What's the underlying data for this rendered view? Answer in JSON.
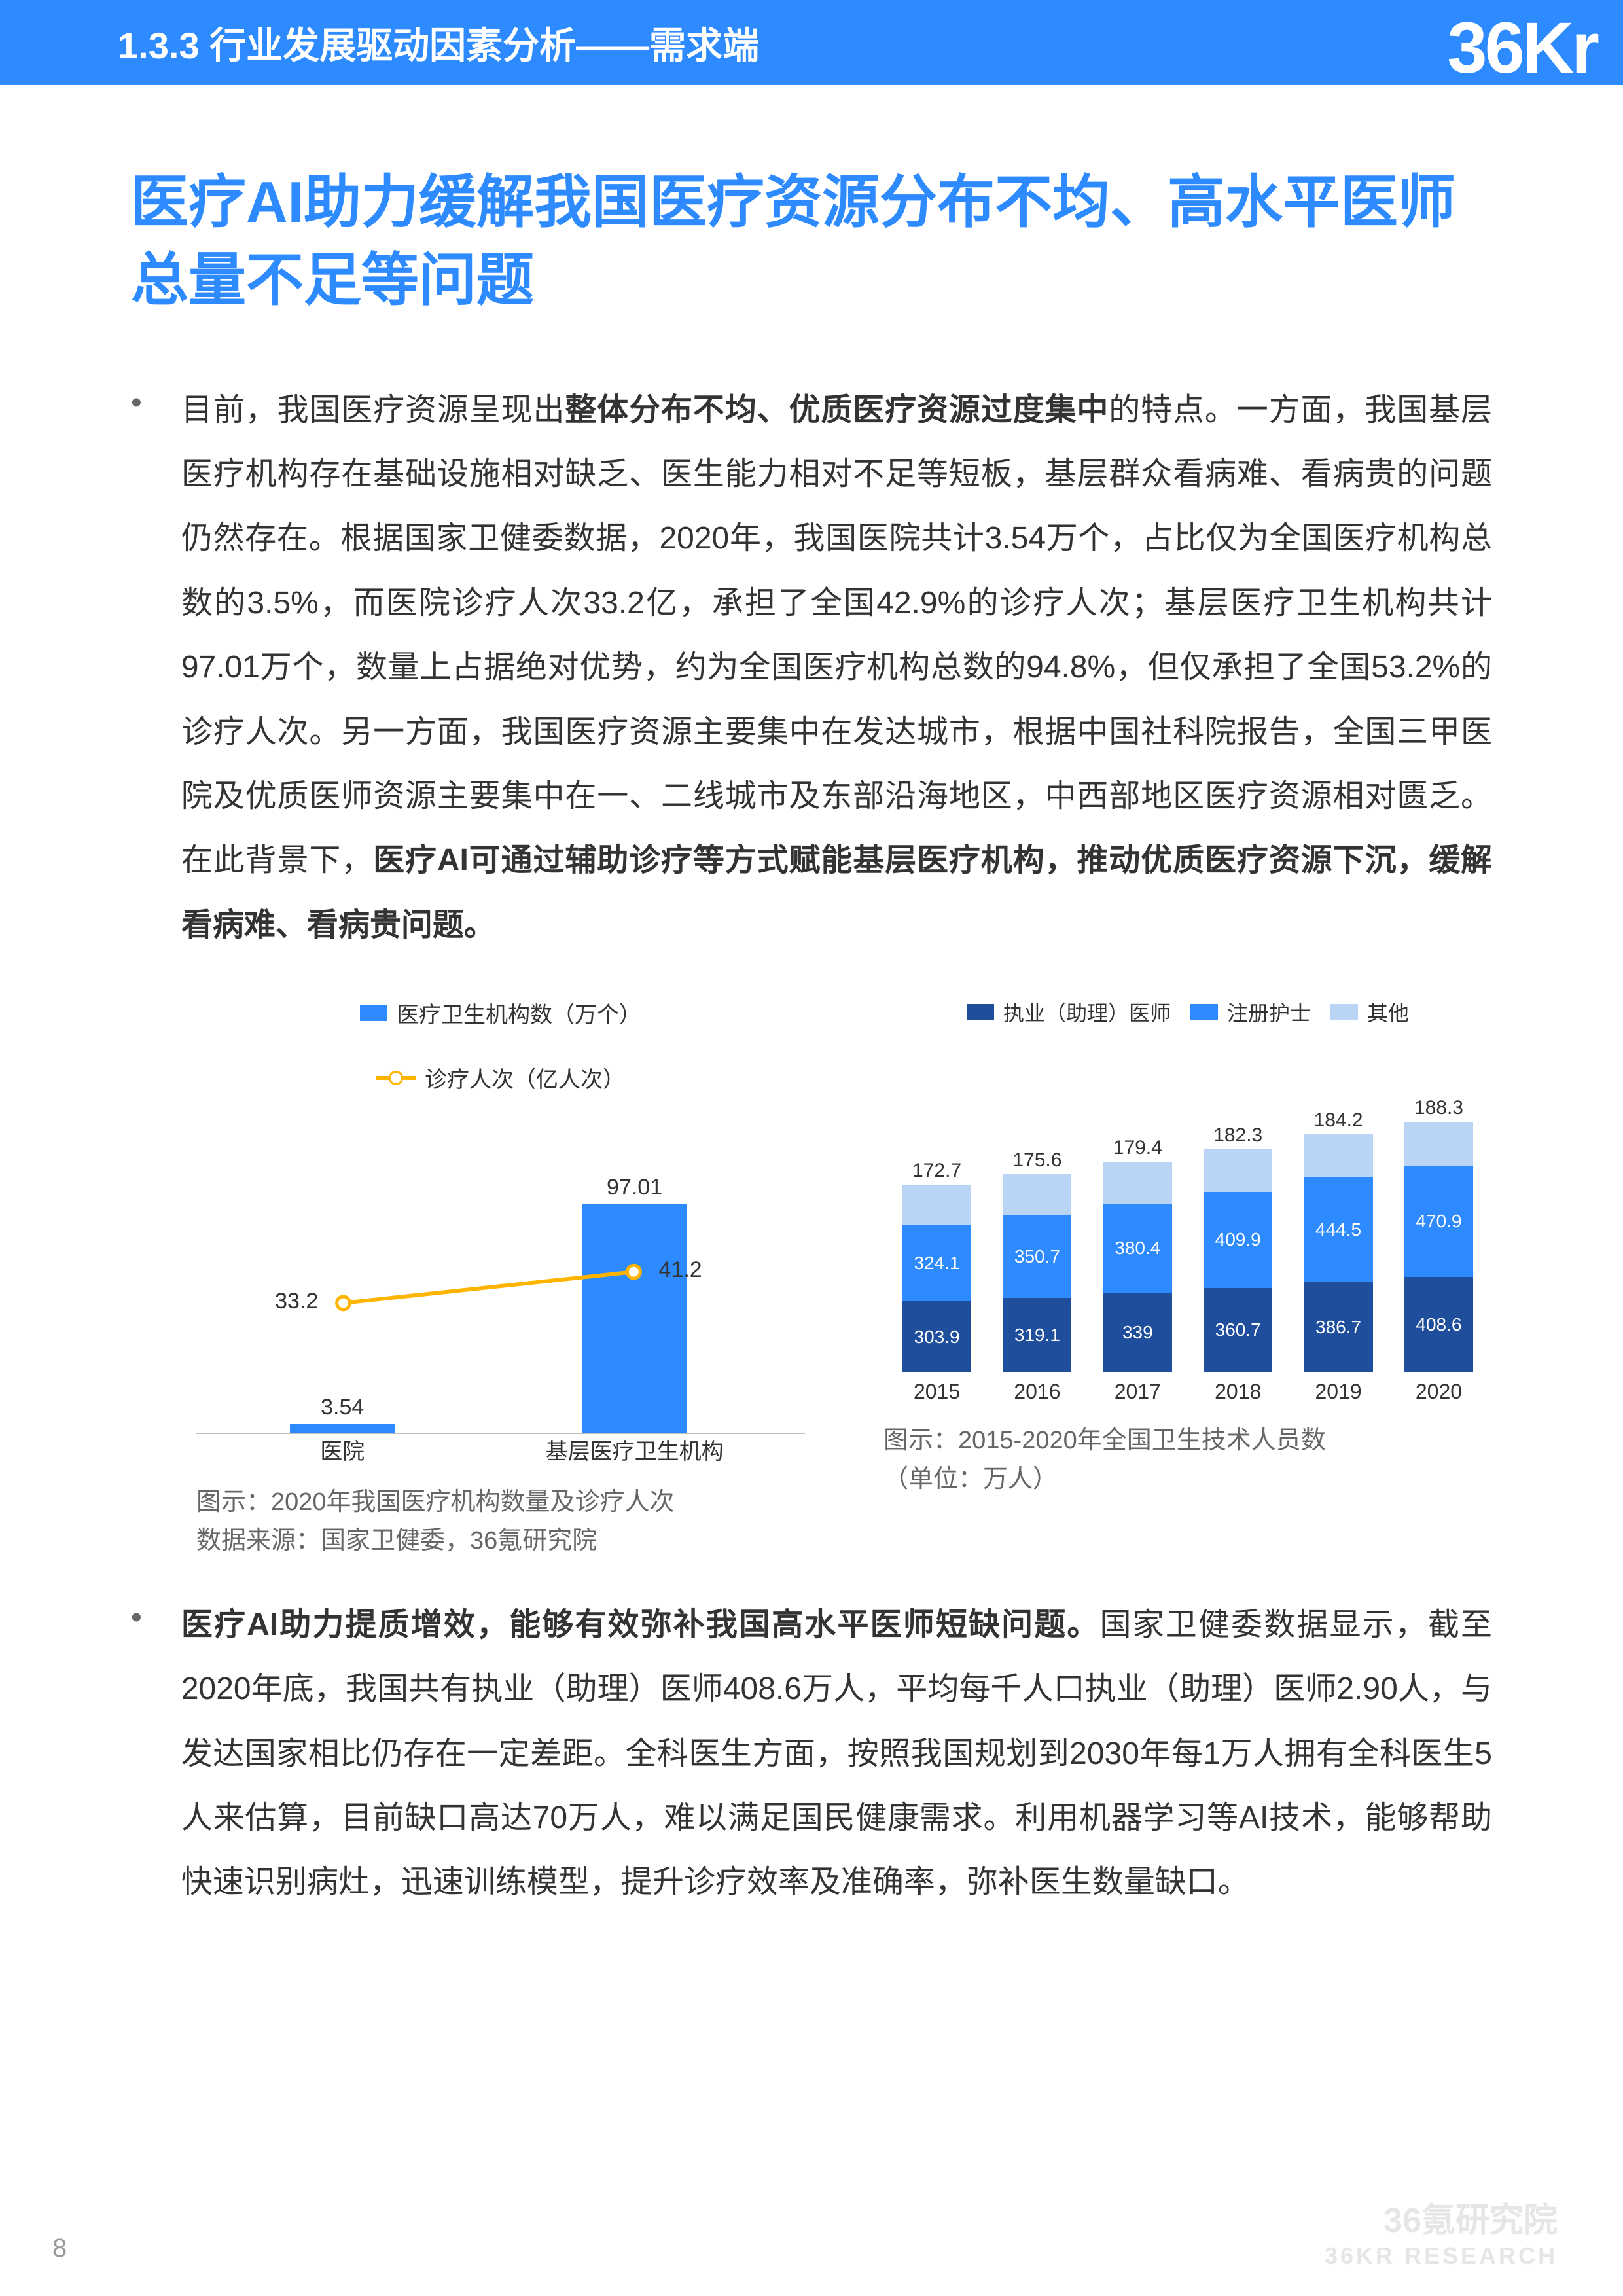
{
  "header": {
    "section": "1.3.3 行业发展驱动因素分析——需求端",
    "logo": "36Kr"
  },
  "title": "医疗AI助力缓解我国医疗资源分布不均、高水平医师总量不足等问题",
  "para1_segments": [
    {
      "t": "目前，我国医疗资源呈现出",
      "b": false
    },
    {
      "t": "整体分布不均、优质医疗资源过度集中",
      "b": true
    },
    {
      "t": "的特点。一方面，我国基层医疗机构存在基础设施相对缺乏、医生能力相对不足等短板，基层群众看病难、看病贵的问题仍然存在。根据国家卫健委数据，2020年，我国医院共计3.54万个，占比仅为全国医疗机构总数的3.5%，而医院诊疗人次33.2亿，承担了全国42.9%的诊疗人次；基层医疗卫生机构共计97.01万个，数量上占据绝对优势，约为全国医疗机构总数的94.8%，但仅承担了全国53.2%的诊疗人次。另一方面，我国医疗资源主要集中在发达城市，根据中国社科院报告，全国三甲医院及优质医师资源主要集中在一、二线城市及东部沿海地区，中西部地区医疗资源相对匮乏。在此背景下，",
      "b": false
    },
    {
      "t": "医疗AI可通过辅助诊疗等方式赋能基层医疗机构，推动优质医疗资源下沉，缓解看病难、看病贵问题。",
      "b": true
    }
  ],
  "para2_segments": [
    {
      "t": "医疗AI助力提质增效，能够有效弥补我国高水平医师短缺问题。",
      "b": true
    },
    {
      "t": "国家卫健委数据显示，截至2020年底，我国共有执业（助理）医师408.6万人，平均每千人口执业（助理）医师2.90人，与发达国家相比仍存在一定差距。全科医生方面，按照我国规划到2030年每1万人拥有全科医生5人来估算，目前缺口高达70万人，难以满足国民健康需求。利用机器学习等AI技术，能够帮助快速识别病灶，迅速训练模型，提升诊疗效率及准确率，弥补医生数量缺口。",
      "b": false
    }
  ],
  "chart1": {
    "type": "bar+line",
    "legend_bar": "医疗卫生机构数（万个）",
    "legend_line": "诊疗人次（亿人次）",
    "bar_color": "#2e8bff",
    "line_color": "#ffb400",
    "marker_border": "#ffb400",
    "marker_fill": "#ffffff",
    "axis_color": "#bfbfbf",
    "categories": [
      "医院",
      "基层医疗卫生机构"
    ],
    "bar_values": [
      3.54,
      97.01
    ],
    "bar_labels": [
      "3.54",
      "97.01"
    ],
    "line_values": [
      33.2,
      41.2
    ],
    "line_labels": [
      "33.2",
      "41.2"
    ],
    "y_max_bar": 100,
    "y_max_line": 60,
    "caption_l1": "图示：2020年我国医疗机构数量及诊疗人次",
    "caption_l2": "数据来源：国家卫健委，36氪研究院"
  },
  "chart2": {
    "type": "stacked-bar",
    "legend": [
      {
        "label": "执业（助理）医师",
        "color": "#1f4e9c"
      },
      {
        "label": "注册护士",
        "color": "#2e8bff"
      },
      {
        "label": "其他",
        "color": "#b9d4f5"
      }
    ],
    "categories": [
      "2015",
      "2016",
      "2017",
      "2018",
      "2019",
      "2020"
    ],
    "top_labels": [
      "172.7",
      "175.6",
      "179.4",
      "182.3",
      "184.2",
      "188.3"
    ],
    "series": {
      "doctor": [
        303.9,
        319.1,
        339.0,
        360.7,
        386.7,
        408.6
      ],
      "nurse": [
        324.1,
        350.7,
        380.4,
        409.9,
        444.5,
        470.9
      ],
      "other": [
        172.7,
        175.6,
        179.4,
        182.3,
        184.2,
        188.3
      ]
    },
    "seg_labels": {
      "doctor": [
        "303.9",
        "319.1",
        "339",
        "360.7",
        "386.7",
        "408.6"
      ],
      "nurse": [
        "324.1",
        "350.7",
        "380.4",
        "409.9",
        "444.5",
        "470.9"
      ]
    },
    "colors": {
      "doctor": "#1f4e9c",
      "nurse": "#2e8bff",
      "other": "#b9d4f5"
    },
    "y_max": 1200,
    "caption_l1": "图示：2015-2020年全国卫生技术人员数",
    "caption_l2": "（单位：万人）"
  },
  "page_number": "8",
  "watermark": {
    "cn": "36氪研究院",
    "en": "36KR RESEARCH"
  }
}
